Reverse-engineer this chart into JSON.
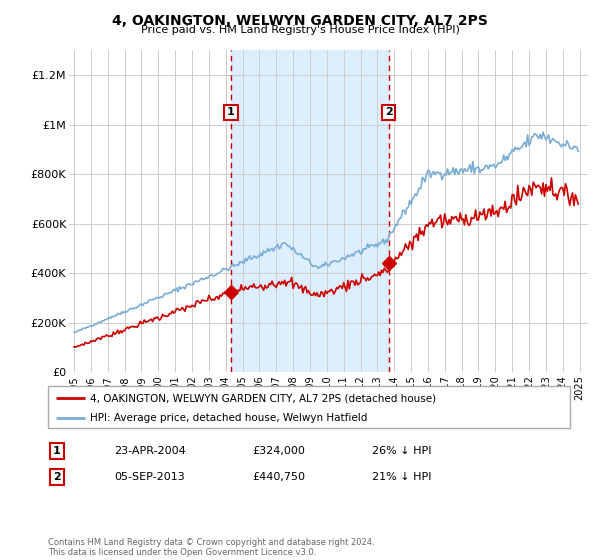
{
  "title": "4, OAKINGTON, WELWYN GARDEN CITY, AL7 2PS",
  "subtitle": "Price paid vs. HM Land Registry's House Price Index (HPI)",
  "ylim": [
    0,
    1300000
  ],
  "xlim_start": 1994.7,
  "xlim_end": 2025.5,
  "yticks": [
    0,
    200000,
    400000,
    600000,
    800000,
    1000000,
    1200000
  ],
  "ytick_labels": [
    "£0",
    "£200K",
    "£400K",
    "£600K",
    "£800K",
    "£1M",
    "£1.2M"
  ],
  "xticks": [
    1995,
    1996,
    1997,
    1998,
    1999,
    2000,
    2001,
    2002,
    2003,
    2004,
    2005,
    2006,
    2007,
    2008,
    2009,
    2010,
    2011,
    2012,
    2013,
    2014,
    2015,
    2016,
    2017,
    2018,
    2019,
    2020,
    2021,
    2022,
    2023,
    2024,
    2025
  ],
  "sale1_x": 2004.31,
  "sale1_y": 324000,
  "sale1_label": "1",
  "sale2_x": 2013.68,
  "sale2_y": 440750,
  "sale2_label": "2",
  "sale1_date": "23-APR-2004",
  "sale1_price": "£324,000",
  "sale1_hpi": "26% ↓ HPI",
  "sale2_date": "05-SEP-2013",
  "sale2_price": "£440,750",
  "sale2_hpi": "21% ↓ HPI",
  "legend_property": "4, OAKINGTON, WELWYN GARDEN CITY, AL7 2PS (detached house)",
  "legend_hpi": "HPI: Average price, detached house, Welwyn Hatfield",
  "property_color": "#cc0000",
  "hpi_color": "#7aadd4",
  "vline_color": "#cc0000",
  "background_color": "#ffffff",
  "grid_color": "#cccccc",
  "shade_color": "#ddeeff",
  "footer": "Contains HM Land Registry data © Crown copyright and database right 2024.\nThis data is licensed under the Open Government Licence v3.0."
}
